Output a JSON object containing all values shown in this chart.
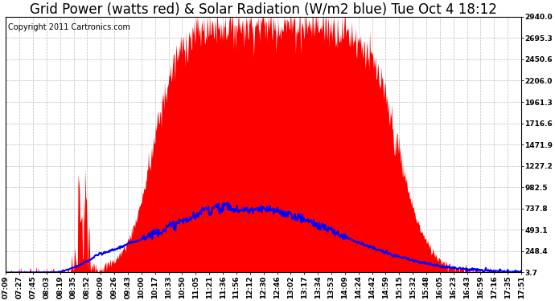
{
  "title": "Grid Power (watts red) & Solar Radiation (W/m2 blue) Tue Oct 4 18:12",
  "copyright": "Copyright 2011 Cartronics.com",
  "y_ticks": [
    3.7,
    248.4,
    493.1,
    737.8,
    982.5,
    1227.2,
    1471.9,
    1716.6,
    1961.3,
    2206.0,
    2450.6,
    2695.3,
    2940.0
  ],
  "x_labels": [
    "07:09",
    "07:27",
    "07:45",
    "08:03",
    "08:19",
    "08:35",
    "08:52",
    "09:09",
    "09:26",
    "09:43",
    "10:00",
    "10:17",
    "10:33",
    "10:50",
    "11:05",
    "11:21",
    "11:36",
    "11:56",
    "12:12",
    "12:30",
    "12:46",
    "13:02",
    "13:17",
    "13:34",
    "13:53",
    "14:09",
    "14:24",
    "14:42",
    "14:59",
    "15:15",
    "15:32",
    "15:48",
    "16:05",
    "16:23",
    "16:43",
    "16:59",
    "17:16",
    "17:35",
    "17:51"
  ],
  "background_color": "#ffffff",
  "plot_bg_color": "#ffffff",
  "red_color": "#ff0000",
  "blue_color": "#0000ff",
  "grid_color": "#bbbbbb",
  "title_fontsize": 12,
  "copyright_fontsize": 7,
  "tick_fontsize": 6.5,
  "ymax": 2940.0,
  "ymin": 3.7,
  "n_points": 800
}
